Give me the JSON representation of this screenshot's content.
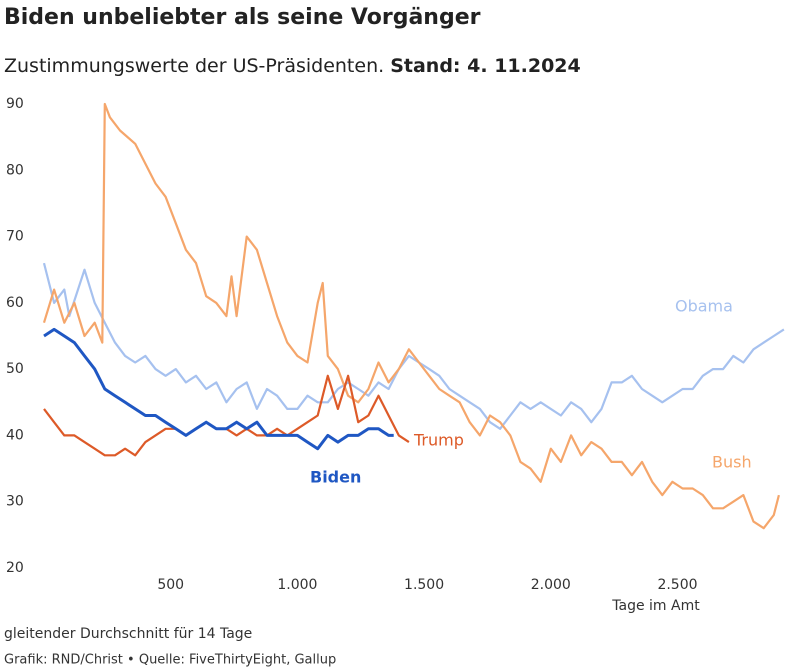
{
  "chart_data": {
    "type": "line",
    "title": "Biden unbeliebter als seine Vorgänger",
    "subtitle": "Zustimmungswerte der US-Präsidenten.",
    "subtitle_date": "Stand: 4. 11.2024",
    "xlabel": "Tage im Amt",
    "note": "gleitender Durchschnitt für 14 Tage",
    "source": "Grafik: RND/Christ • Quelle: FiveThirtyEight, Gallup",
    "xlim": [
      0,
      2940
    ],
    "ylim": [
      20,
      90
    ],
    "xticks": [
      {
        "value": 500,
        "label": "500"
      },
      {
        "value": 1000,
        "label": "1.000"
      },
      {
        "value": 1500,
        "label": "1.500"
      },
      {
        "value": 2000,
        "label": "2.000"
      },
      {
        "value": 2500,
        "label": "2.500"
      }
    ],
    "yticks": [
      20,
      30,
      40,
      50,
      60,
      70,
      80,
      90
    ],
    "series": [
      {
        "name": "Obama",
        "color": "#a6c1ef",
        "x": [
          0,
          40,
          80,
          100,
          160,
          200,
          240,
          280,
          320,
          360,
          400,
          440,
          480,
          520,
          560,
          600,
          640,
          680,
          720,
          760,
          800,
          840,
          880,
          920,
          960,
          1000,
          1040,
          1080,
          1120,
          1160,
          1200,
          1240,
          1280,
          1320,
          1360,
          1400,
          1440,
          1480,
          1520,
          1560,
          1600,
          1640,
          1680,
          1720,
          1760,
          1800,
          1840,
          1880,
          1920,
          1960,
          2000,
          2040,
          2080,
          2120,
          2160,
          2200,
          2240,
          2280,
          2320,
          2360,
          2400,
          2440,
          2480,
          2520,
          2560,
          2600,
          2640,
          2680,
          2720,
          2760,
          2800,
          2840,
          2880,
          2920
        ],
        "values": [
          66,
          60,
          62,
          58,
          65,
          60,
          57,
          54,
          52,
          51,
          52,
          50,
          49,
          50,
          48,
          49,
          47,
          48,
          45,
          47,
          48,
          44,
          47,
          46,
          44,
          44,
          46,
          45,
          45,
          47,
          48,
          47,
          46,
          48,
          47,
          50,
          52,
          51,
          50,
          49,
          47,
          46,
          45,
          44,
          42,
          41,
          43,
          45,
          44,
          45,
          44,
          43,
          45,
          44,
          42,
          44,
          48,
          48,
          49,
          47,
          46,
          45,
          46,
          47,
          47,
          49,
          50,
          50,
          52,
          51,
          53,
          54,
          55,
          56
        ]
      },
      {
        "name": "Bush",
        "color": "#f5a66b",
        "x": [
          0,
          40,
          80,
          120,
          160,
          200,
          230,
          240,
          260,
          300,
          360,
          400,
          440,
          480,
          520,
          560,
          600,
          640,
          680,
          720,
          740,
          760,
          800,
          840,
          880,
          920,
          960,
          1000,
          1040,
          1080,
          1100,
          1120,
          1160,
          1200,
          1240,
          1280,
          1320,
          1360,
          1400,
          1440,
          1480,
          1520,
          1560,
          1600,
          1640,
          1680,
          1720,
          1760,
          1800,
          1840,
          1880,
          1920,
          1960,
          2000,
          2040,
          2080,
          2120,
          2160,
          2200,
          2240,
          2280,
          2320,
          2360,
          2400,
          2440,
          2480,
          2520,
          2560,
          2600,
          2640,
          2680,
          2720,
          2760,
          2800,
          2840,
          2880,
          2900
        ],
        "values": [
          57,
          62,
          57,
          60,
          55,
          57,
          54,
          90,
          88,
          86,
          84,
          81,
          78,
          76,
          72,
          68,
          66,
          61,
          60,
          58,
          64,
          58,
          70,
          68,
          63,
          58,
          54,
          52,
          51,
          60,
          63,
          52,
          50,
          46,
          45,
          47,
          51,
          48,
          50,
          53,
          51,
          49,
          47,
          46,
          45,
          42,
          40,
          43,
          42,
          40,
          36,
          35,
          33,
          38,
          36,
          40,
          37,
          39,
          38,
          36,
          36,
          34,
          36,
          33,
          31,
          33,
          32,
          32,
          31,
          29,
          29,
          30,
          31,
          27,
          26,
          28,
          31
        ]
      },
      {
        "name": "Trump",
        "color": "#dd5a28",
        "x": [
          0,
          40,
          80,
          120,
          160,
          200,
          240,
          280,
          320,
          360,
          400,
          440,
          480,
          520,
          560,
          600,
          640,
          680,
          720,
          760,
          800,
          840,
          880,
          920,
          960,
          1000,
          1040,
          1080,
          1120,
          1160,
          1200,
          1240,
          1280,
          1320,
          1360,
          1400,
          1440
        ],
        "values": [
          44,
          42,
          40,
          40,
          39,
          38,
          37,
          37,
          38,
          37,
          39,
          40,
          41,
          41,
          40,
          41,
          42,
          41,
          41,
          40,
          41,
          40,
          40,
          41,
          40,
          41,
          42,
          43,
          49,
          44,
          49,
          42,
          43,
          46,
          43,
          40,
          39
        ]
      },
      {
        "name": "Biden",
        "color": "#1f57c3",
        "x": [
          0,
          40,
          80,
          120,
          160,
          200,
          240,
          280,
          320,
          360,
          400,
          440,
          480,
          520,
          560,
          600,
          640,
          680,
          720,
          760,
          800,
          840,
          880,
          920,
          960,
          1000,
          1040,
          1080,
          1120,
          1160,
          1200,
          1240,
          1280,
          1320,
          1360,
          1380
        ],
        "values": [
          55,
          56,
          55,
          54,
          52,
          50,
          47,
          46,
          45,
          44,
          43,
          43,
          42,
          41,
          40,
          41,
          42,
          41,
          41,
          42,
          41,
          42,
          40,
          40,
          40,
          40,
          39,
          38,
          40,
          39,
          40,
          40,
          41,
          41,
          40,
          40
        ]
      }
    ]
  }
}
